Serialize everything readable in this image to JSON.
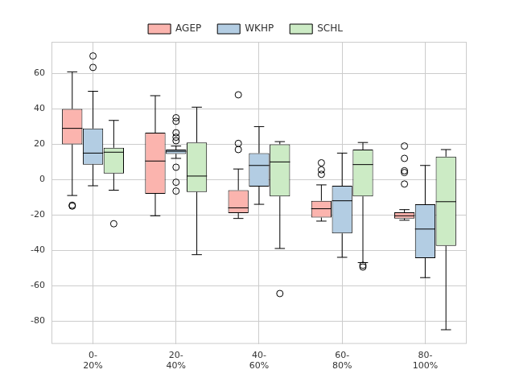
{
  "chart_data": {
    "type": "boxplot",
    "categories": [
      "0-\n20%",
      "20-\n40%",
      "40-\n60%",
      "60-\n80%",
      "80-\n100%"
    ],
    "series": [
      {
        "name": "AGEP",
        "color": "#fbb4ae",
        "values": [
          {
            "min": -9,
            "q1": 20,
            "median": 29,
            "q3": 40,
            "max": 61,
            "outliers": [
              -14.5,
              -15
            ]
          },
          {
            "min": -20.5,
            "q1": -8,
            "median": 10.5,
            "q3": 26.5,
            "max": 47.5,
            "outliers": []
          },
          {
            "min": -22,
            "q1": -19,
            "median": -16,
            "q3": -6,
            "max": 6,
            "outliers": [
              17,
              20.5,
              48
            ]
          },
          {
            "min": -23.5,
            "q1": -21.5,
            "median": -16.5,
            "q3": -12,
            "max": -3,
            "outliers": [
              3,
              5.5,
              9.5
            ]
          },
          {
            "min": -23,
            "q1": -22,
            "median": -20.5,
            "q3": -18.5,
            "max": -17,
            "outliers": [
              19,
              12,
              5,
              4,
              -2.5
            ]
          }
        ]
      },
      {
        "name": "WKHP",
        "color": "#b3cde3",
        "values": [
          {
            "min": -3.5,
            "q1": 8.5,
            "median": 15,
            "q3": 29,
            "max": 50,
            "outliers": [
              70,
              63.5
            ]
          },
          {
            "min": 12,
            "q1": 14.5,
            "median": 16,
            "q3": 17,
            "max": 19,
            "outliers": [
              35,
              33,
              26.5,
              24,
              22,
              7,
              -1.5,
              -6.5
            ]
          },
          {
            "min": -14,
            "q1": -4,
            "median": 8,
            "q3": 15,
            "max": 30,
            "outliers": []
          },
          {
            "min": -44,
            "q1": -30.5,
            "median": -12,
            "q3": -3.5,
            "max": 15,
            "outliers": []
          },
          {
            "min": -55.5,
            "q1": -44.5,
            "median": -28,
            "q3": -14,
            "max": 8,
            "outliers": []
          }
        ]
      },
      {
        "name": "SCHL",
        "color": "#ccebc5",
        "values": [
          {
            "min": -6,
            "q1": 3.5,
            "median": 15.5,
            "q3": 18,
            "max": 33.5,
            "outliers": [
              -25
            ]
          },
          {
            "min": -42.5,
            "q1": -7,
            "median": 2,
            "q3": 21,
            "max": 41,
            "outliers": []
          },
          {
            "min": -39,
            "q1": -9.5,
            "median": 10,
            "q3": 20,
            "max": 21.5,
            "outliers": [
              -64.5
            ]
          },
          {
            "min": -47,
            "q1": -9.5,
            "median": 8.5,
            "q3": 17,
            "max": 21,
            "outliers": [
              -48.5,
              -49.5
            ]
          },
          {
            "min": -85,
            "q1": -37.5,
            "median": -12.5,
            "q3": 13,
            "max": 17,
            "outliers": []
          }
        ]
      }
    ],
    "ylim": [
      -93,
      78
    ],
    "yticks": [
      -80,
      -60,
      -40,
      -20,
      0,
      20,
      40,
      60
    ],
    "grid": true,
    "legend": "top"
  }
}
